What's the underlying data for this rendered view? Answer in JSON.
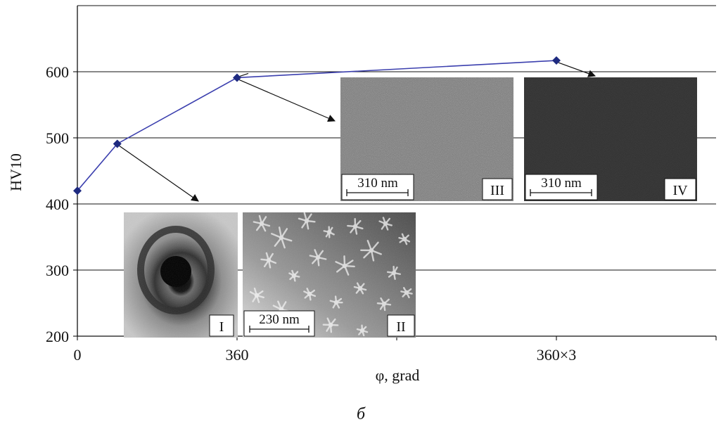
{
  "chart_data": {
    "type": "line",
    "x_tick_labels": [
      "0",
      "360",
      "360×3"
    ],
    "x_tick_values": [
      0,
      360,
      1080
    ],
    "xlim": [
      0,
      1440
    ],
    "ylim": [
      200,
      700
    ],
    "y_ticks": [
      200,
      300,
      400,
      500,
      600
    ],
    "xlabel": "φ, grad",
    "ylabel": "HV10",
    "caption": "б",
    "grid": "horizontal",
    "line_color": "#3b3fae",
    "marker_color": "#1e2a80",
    "series": [
      {
        "x": [
          0,
          90,
          360,
          1080
        ],
        "y": [
          420,
          491,
          591,
          617
        ]
      }
    ],
    "insets": [
      {
        "label": "I",
        "scale": ""
      },
      {
        "label": "II",
        "scale": "230 nm"
      },
      {
        "label": "III",
        "scale": "310 nm"
      },
      {
        "label": "IV",
        "scale": "310 nm"
      }
    ]
  }
}
